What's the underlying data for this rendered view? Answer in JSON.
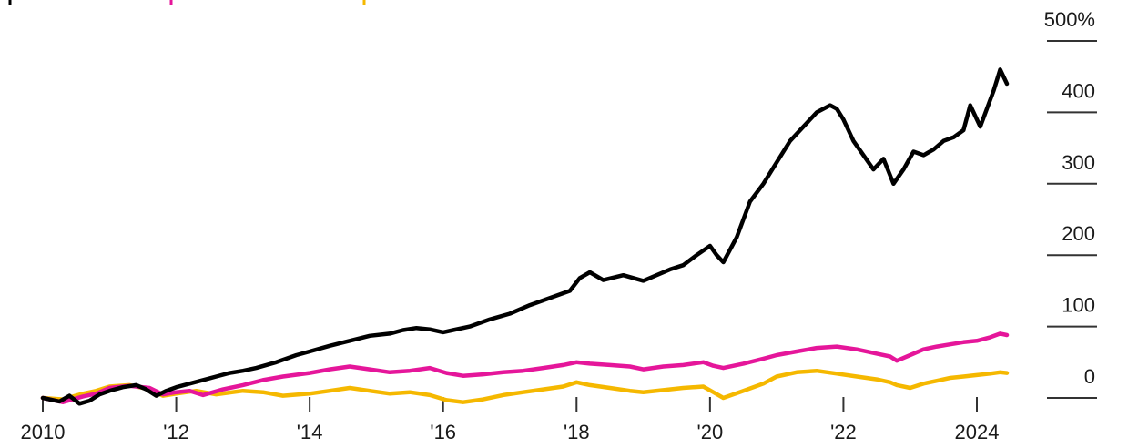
{
  "chart_data": {
    "type": "line",
    "title": "",
    "xlabel": "",
    "ylabel": "",
    "xlim": [
      2010,
      2024.6
    ],
    "ylim": [
      0,
      500
    ],
    "y_axis_side": "right",
    "grid": false,
    "legend_position": "top-left (partially cut off)",
    "x_ticks": [
      {
        "value": 2010,
        "label": "2010"
      },
      {
        "value": 2012,
        "label": "'12"
      },
      {
        "value": 2014,
        "label": "'14"
      },
      {
        "value": 2016,
        "label": "'16"
      },
      {
        "value": 2018,
        "label": "'18"
      },
      {
        "value": 2020,
        "label": "'20"
      },
      {
        "value": 2022,
        "label": "'22"
      },
      {
        "value": 2024,
        "label": "2024"
      }
    ],
    "y_ticks": [
      {
        "value": 0,
        "label": "0"
      },
      {
        "value": 100,
        "label": "100"
      },
      {
        "value": 200,
        "label": "200"
      },
      {
        "value": 300,
        "label": "300"
      },
      {
        "value": 400,
        "label": "400"
      },
      {
        "value": 500,
        "label": "500%"
      }
    ],
    "series": [
      {
        "color": "#000000",
        "x": [
          2010.0,
          2010.25,
          2010.4,
          2010.55,
          2010.7,
          2010.85,
          2011.0,
          2011.2,
          2011.4,
          2011.55,
          2011.7,
          2011.85,
          2012.0,
          2012.2,
          2012.4,
          2012.6,
          2012.8,
          2013.0,
          2013.2,
          2013.5,
          2013.8,
          2014.0,
          2014.3,
          2014.6,
          2014.9,
          2015.2,
          2015.4,
          2015.6,
          2015.8,
          2016.0,
          2016.15,
          2016.4,
          2016.7,
          2017.0,
          2017.3,
          2017.6,
          2017.9,
          2018.05,
          2018.2,
          2018.4,
          2018.7,
          2018.85,
          2019.0,
          2019.2,
          2019.4,
          2019.6,
          2019.8,
          2020.0,
          2020.1,
          2020.2,
          2020.4,
          2020.6,
          2020.8,
          2021.0,
          2021.2,
          2021.4,
          2021.6,
          2021.8,
          2021.9,
          2022.0,
          2022.15,
          2022.3,
          2022.45,
          2022.6,
          2022.75,
          2022.9,
          2023.05,
          2023.2,
          2023.35,
          2023.5,
          2023.65,
          2023.8,
          2023.9,
          2024.05,
          2024.25,
          2024.35,
          2024.45
        ],
        "y": [
          0,
          -5,
          3,
          -8,
          -4,
          5,
          10,
          15,
          18,
          12,
          3,
          10,
          15,
          20,
          25,
          30,
          35,
          38,
          42,
          50,
          60,
          65,
          73,
          80,
          87,
          90,
          95,
          98,
          96,
          92,
          95,
          100,
          110,
          118,
          130,
          140,
          150,
          168,
          176,
          165,
          172,
          168,
          164,
          172,
          180,
          186,
          200,
          213,
          200,
          190,
          225,
          275,
          300,
          330,
          360,
          380,
          400,
          410,
          405,
          390,
          360,
          340,
          320,
          335,
          300,
          320,
          345,
          340,
          348,
          360,
          365,
          375,
          410,
          380,
          430,
          460,
          440
        ],
        "stroke_width": 4.5
      },
      {
        "color": "#e5169a",
        "x": [
          2010.0,
          2010.3,
          2010.6,
          2010.8,
          2011.0,
          2011.3,
          2011.6,
          2011.8,
          2012.0,
          2012.2,
          2012.4,
          2012.7,
          2013.0,
          2013.3,
          2013.6,
          2014.0,
          2014.3,
          2014.6,
          2014.9,
          2015.2,
          2015.5,
          2015.8,
          2016.05,
          2016.3,
          2016.6,
          2016.9,
          2017.2,
          2017.5,
          2017.8,
          2018.0,
          2018.2,
          2018.5,
          2018.8,
          2019.0,
          2019.3,
          2019.6,
          2019.9,
          2020.05,
          2020.2,
          2020.5,
          2020.8,
          2021.0,
          2021.3,
          2021.6,
          2021.9,
          2022.2,
          2022.5,
          2022.7,
          2022.8,
          2023.0,
          2023.2,
          2023.4,
          2023.6,
          2023.8,
          2024.0,
          2024.2,
          2024.35,
          2024.45
        ],
        "y": [
          0,
          -6,
          2,
          6,
          14,
          17,
          14,
          5,
          8,
          10,
          4,
          12,
          18,
          25,
          30,
          35,
          40,
          44,
          40,
          36,
          38,
          42,
          35,
          31,
          33,
          36,
          38,
          42,
          46,
          50,
          48,
          46,
          44,
          40,
          44,
          46,
          50,
          45,
          42,
          48,
          55,
          60,
          65,
          70,
          72,
          68,
          62,
          58,
          52,
          60,
          68,
          72,
          75,
          78,
          80,
          85,
          90,
          88
        ],
        "stroke_width": 4.5
      },
      {
        "color": "#f5b800",
        "x": [
          2010.0,
          2010.3,
          2010.6,
          2010.8,
          2011.0,
          2011.3,
          2011.6,
          2011.8,
          2012.0,
          2012.3,
          2012.6,
          2013.0,
          2013.3,
          2013.6,
          2014.0,
          2014.3,
          2014.6,
          2014.9,
          2015.2,
          2015.5,
          2015.8,
          2016.05,
          2016.3,
          2016.6,
          2016.9,
          2017.2,
          2017.5,
          2017.8,
          2018.0,
          2018.2,
          2018.5,
          2018.8,
          2019.0,
          2019.3,
          2019.6,
          2019.9,
          2020.05,
          2020.2,
          2020.5,
          2020.8,
          2021.0,
          2021.3,
          2021.6,
          2021.9,
          2022.2,
          2022.5,
          2022.7,
          2022.8,
          2023.0,
          2023.2,
          2023.4,
          2023.6,
          2023.8,
          2024.0,
          2024.2,
          2024.35,
          2024.45
        ],
        "y": [
          0,
          -2,
          6,
          10,
          16,
          18,
          12,
          3,
          6,
          10,
          5,
          10,
          8,
          3,
          6,
          10,
          14,
          10,
          6,
          8,
          4,
          -3,
          -6,
          -2,
          4,
          8,
          12,
          16,
          22,
          18,
          14,
          10,
          8,
          11,
          14,
          16,
          8,
          0,
          10,
          20,
          30,
          36,
          38,
          34,
          30,
          26,
          22,
          18,
          14,
          20,
          24,
          28,
          30,
          32,
          34,
          36,
          35
        ],
        "stroke_width": 4.5
      }
    ]
  }
}
